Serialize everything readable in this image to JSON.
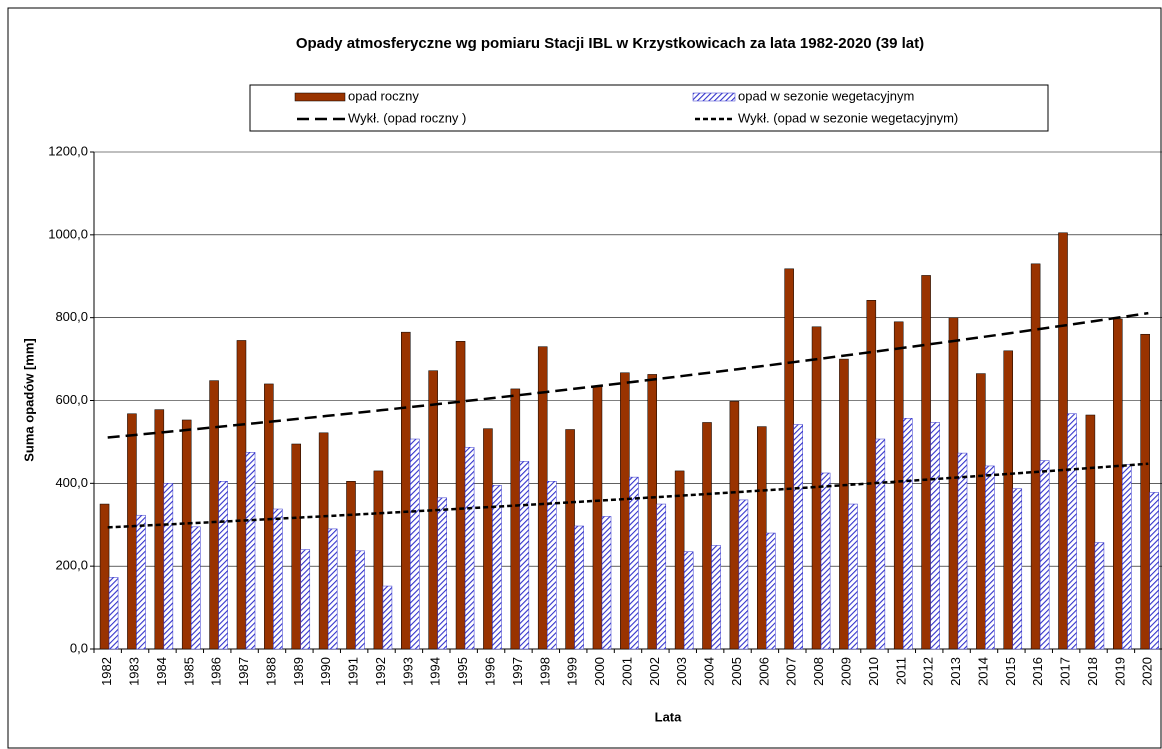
{
  "chart_data": {
    "type": "bar",
    "title": "Opady atmosferyczne wg pomiaru Stacji IBL w  Krzystkowicach za lata 1982-2020 (39 lat)",
    "x_label": "Lata",
    "y_label": "Suma opadów [mm]",
    "categories": [
      "1982",
      "1983",
      "1984",
      "1985",
      "1986",
      "1987",
      "1988",
      "1989",
      "1990",
      "1991",
      "1992",
      "1993",
      "1994",
      "1995",
      "1996",
      "1997",
      "1998",
      "1999",
      "2000",
      "2001",
      "2002",
      "2003",
      "2004",
      "2005",
      "2006",
      "2007",
      "2008",
      "2009",
      "2010",
      "2011",
      "2012",
      "2013",
      "2014",
      "2015",
      "2016",
      "2017",
      "2018",
      "2019",
      "2020"
    ],
    "series": [
      {
        "name": "opad roczny",
        "color": "#993300",
        "values": [
          350,
          568,
          578,
          553,
          648,
          745,
          640,
          495,
          522,
          405,
          430,
          765,
          672,
          743,
          532,
          628,
          730,
          530,
          635,
          667,
          663,
          430,
          547,
          598,
          537,
          918,
          778,
          700,
          842,
          790,
          902,
          800,
          665,
          720,
          930,
          1005,
          565,
          797,
          760
        ]
      },
      {
        "name": "opad w sezonie wegetacyjnym",
        "color": "#3333cc",
        "values": [
          173,
          323,
          400,
          295,
          405,
          475,
          338,
          240,
          290,
          237,
          152,
          507,
          365,
          487,
          395,
          453,
          405,
          297,
          320,
          415,
          350,
          235,
          250,
          360,
          280,
          542,
          425,
          350,
          507,
          557,
          547,
          473,
          442,
          387,
          455,
          568,
          257,
          445,
          378
        ]
      }
    ],
    "trendlines": [
      {
        "name": "Wykł. (opad roczny )",
        "series": 0,
        "kind": "exponential",
        "color": "#000000"
      },
      {
        "name": "Wykł. (opad w sezonie wegetacyjnym)",
        "series": 1,
        "kind": "exponential",
        "color": "#000000"
      }
    ],
    "ylim": [
      0,
      1200
    ],
    "yticks": [
      {
        "value": 0,
        "label": "0,0"
      },
      {
        "value": 200,
        "label": "200,0"
      },
      {
        "value": 400,
        "label": "400,0"
      },
      {
        "value": 600,
        "label": "600,0"
      },
      {
        "value": 800,
        "label": "800,0"
      },
      {
        "value": 1000,
        "label": "1000,0"
      },
      {
        "value": 1200,
        "label": "1200,0"
      }
    ],
    "grid": true
  }
}
